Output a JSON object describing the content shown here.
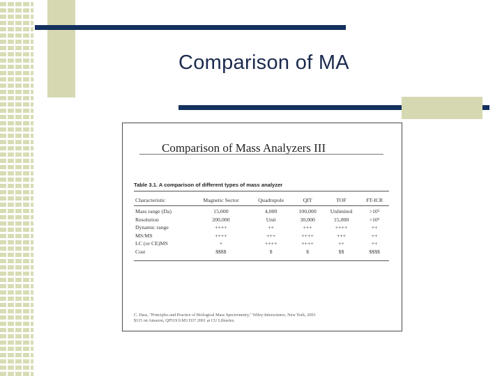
{
  "slide": {
    "title": "Comparison of MA"
  },
  "document": {
    "heading": "Comparison of Mass Analyzers III",
    "caption": "Table 3.1. A comparison of different types of mass analyzer",
    "columns": [
      "Characteristic",
      "Magnetic Sector",
      "Quadrupole",
      "QIT",
      "TOF",
      "FT-ICR"
    ],
    "rows": [
      [
        "Mass range (Da)",
        "15,000",
        "4,000",
        "100,000",
        "Unlimited",
        ">10⁵"
      ],
      [
        "Resolution",
        "200,000",
        "Unit",
        "30,000",
        "15,000",
        ">10⁶"
      ],
      [
        "Dynamic range",
        "++++",
        "++",
        "+++",
        "++++",
        "++"
      ],
      [
        "MS/MS",
        "++++",
        "+++",
        "++++",
        "+++",
        "++"
      ],
      [
        "LC (or CE)MS",
        "+",
        "++++",
        "++++",
        "++",
        "++"
      ],
      [
        "Cost",
        "$$$$",
        "$",
        "$",
        "$$",
        "$$$$"
      ]
    ],
    "citation_line1": "C. Dass, \"Principles and Practice of Biological Mass Spectrometry,\" Wiley-Interscience, New York, 2001",
    "citation_line2": "$115 on Amazon, QP519.9.M3 D37 2001 at CU Libraries."
  }
}
